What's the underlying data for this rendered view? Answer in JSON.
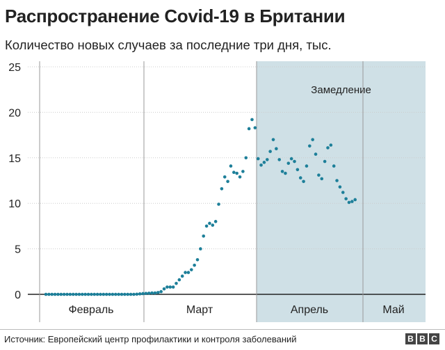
{
  "title": "Распространение Covid-19 в Британии",
  "subtitle": "Количество новых случаев за последние три дня, тыс.",
  "source": "Источник: Европейский центр профилактики и контроля заболеваний",
  "logo": [
    "B",
    "B",
    "C"
  ],
  "colors": {
    "point": "#1d7f99",
    "shade": "#cfe0e6",
    "grid": "#999999",
    "axis": "#222222"
  },
  "chart_data": {
    "type": "scatter",
    "ylim": [
      0,
      25
    ],
    "yticks": [
      0,
      5,
      10,
      15,
      20,
      25
    ],
    "months": [
      "Февраль",
      "Март",
      "Апрель",
      "Май"
    ],
    "shaded_region": {
      "label": "Замедление",
      "from_day": 70,
      "to_day": 102
    },
    "values": [
      0,
      0,
      0,
      0,
      0,
      0,
      0,
      0,
      0,
      0,
      0,
      0,
      0,
      0,
      0,
      0,
      0,
      0,
      0,
      0,
      0,
      0,
      0,
      0,
      0,
      0,
      0,
      0,
      0,
      0,
      0.02,
      0.05,
      0.08,
      0.1,
      0.12,
      0.15,
      0.15,
      0.2,
      0.3,
      0.6,
      0.8,
      0.8,
      0.8,
      1.2,
      1.6,
      2.0,
      2.4,
      2.4,
      2.7,
      3.2,
      3.8,
      5.0,
      6.4,
      7.5,
      7.8,
      7.6,
      8.0,
      9.9,
      11.6,
      12.9,
      12.4,
      14.1,
      13.4,
      13.3,
      12.9,
      13.5,
      15.0,
      18.2,
      19.2,
      18.3,
      14.9,
      14.2,
      14.5,
      14.8,
      15.7,
      17.0,
      16.0,
      14.8,
      13.5,
      13.3,
      14.4,
      14.9,
      14.6,
      13.7,
      12.8,
      12.4,
      14.1,
      16.3,
      17.0,
      15.4,
      13.1,
      12.7,
      14.6,
      16.1,
      16.4,
      14.1,
      12.5,
      11.8,
      11.2,
      10.5,
      10.1,
      10.2,
      10.4
    ]
  }
}
